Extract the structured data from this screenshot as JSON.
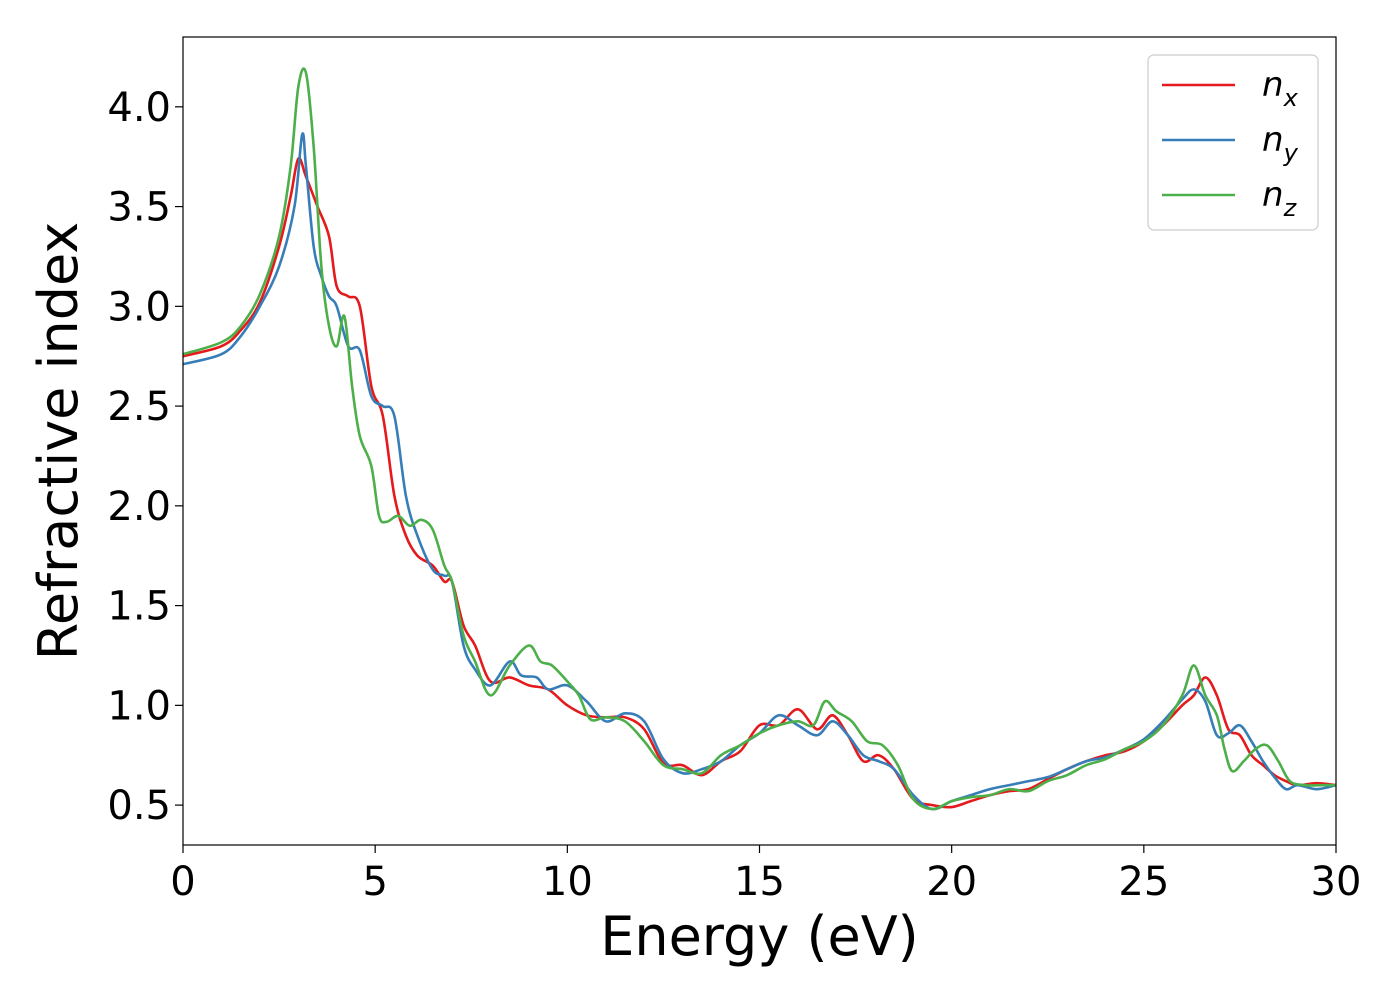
{
  "chart_data": {
    "type": "line",
    "xlabel": "Energy (eV)",
    "ylabel": "Refractive index",
    "xlim": [
      0,
      30
    ],
    "ylim": [
      0.3,
      4.35
    ],
    "xticks": [
      0,
      5,
      10,
      15,
      20,
      25,
      30
    ],
    "xtick_labels": [
      "0",
      "5",
      "10",
      "15",
      "20",
      "25",
      "30"
    ],
    "yticks": [
      0.5,
      1.0,
      1.5,
      2.0,
      2.5,
      3.0,
      3.5,
      4.0
    ],
    "ytick_labels": [
      "0.5",
      "1.0",
      "1.5",
      "2.0",
      "2.5",
      "3.0",
      "3.5",
      "4.0"
    ],
    "grid": false,
    "legend_position": "top-right",
    "series": [
      {
        "name": "n",
        "subscript": "x",
        "color": "#e41a1c",
        "x": [
          0,
          1,
          1.5,
          2,
          2.5,
          2.8,
          3.0,
          3.2,
          3.5,
          3.8,
          4.0,
          4.3,
          4.6,
          4.9,
          5.2,
          5.5,
          5.8,
          6.1,
          6.5,
          6.8,
          7.0,
          7.3,
          7.6,
          8.0,
          8.5,
          9.0,
          9.5,
          10.0,
          10.5,
          11.0,
          11.5,
          12.0,
          12.5,
          13.0,
          13.5,
          14.0,
          14.5,
          15.0,
          15.5,
          16.0,
          16.5,
          16.9,
          17.3,
          17.7,
          18.1,
          18.5,
          19.0,
          19.5,
          20.0,
          20.5,
          21.0,
          21.5,
          22.0,
          22.5,
          23.0,
          23.5,
          24.0,
          24.5,
          25.0,
          25.5,
          26.0,
          26.3,
          26.6,
          26.9,
          27.2,
          27.5,
          27.8,
          28.1,
          28.4,
          28.7,
          29.0,
          29.5,
          30.0
        ],
        "y": [
          2.75,
          2.8,
          2.88,
          3.02,
          3.3,
          3.55,
          3.74,
          3.65,
          3.5,
          3.35,
          3.1,
          3.05,
          3.0,
          2.6,
          2.45,
          2.05,
          1.85,
          1.75,
          1.7,
          1.62,
          1.62,
          1.4,
          1.3,
          1.12,
          1.14,
          1.1,
          1.08,
          1.0,
          0.95,
          0.94,
          0.94,
          0.88,
          0.71,
          0.7,
          0.65,
          0.72,
          0.77,
          0.9,
          0.9,
          0.98,
          0.88,
          0.95,
          0.85,
          0.72,
          0.75,
          0.68,
          0.53,
          0.5,
          0.49,
          0.52,
          0.55,
          0.57,
          0.58,
          0.63,
          0.68,
          0.72,
          0.75,
          0.77,
          0.82,
          0.9,
          1.0,
          1.05,
          1.14,
          1.05,
          0.88,
          0.85,
          0.75,
          0.7,
          0.65,
          0.62,
          0.6,
          0.61,
          0.6
        ]
      },
      {
        "name": "n",
        "subscript": "y",
        "color": "#377eb8",
        "x": [
          0,
          1,
          1.5,
          2,
          2.5,
          2.9,
          3.1,
          3.2,
          3.4,
          3.6,
          3.8,
          4.0,
          4.3,
          4.6,
          4.9,
          5.2,
          5.5,
          5.8,
          6.1,
          6.5,
          6.8,
          7.0,
          7.3,
          7.6,
          8.0,
          8.5,
          8.8,
          9.2,
          9.5,
          10.0,
          10.5,
          11.0,
          11.5,
          12.0,
          12.5,
          13.0,
          13.5,
          14.0,
          14.5,
          15.0,
          15.5,
          16.0,
          16.5,
          16.9,
          17.3,
          17.7,
          18.1,
          18.5,
          19.0,
          19.5,
          20.0,
          20.5,
          21.0,
          21.5,
          22.0,
          22.5,
          23.0,
          23.5,
          24.0,
          24.5,
          25.0,
          25.5,
          26.0,
          26.3,
          26.6,
          26.9,
          27.2,
          27.5,
          27.8,
          28.1,
          28.4,
          28.7,
          29.0,
          29.5,
          30.0
        ],
        "y": [
          2.71,
          2.76,
          2.85,
          3.0,
          3.2,
          3.5,
          3.86,
          3.7,
          3.3,
          3.15,
          3.05,
          3.0,
          2.8,
          2.78,
          2.55,
          2.5,
          2.45,
          2.05,
          1.85,
          1.68,
          1.65,
          1.62,
          1.3,
          1.18,
          1.1,
          1.22,
          1.15,
          1.14,
          1.08,
          1.1,
          1.02,
          0.92,
          0.96,
          0.92,
          0.73,
          0.66,
          0.68,
          0.72,
          0.8,
          0.86,
          0.95,
          0.9,
          0.85,
          0.92,
          0.85,
          0.75,
          0.72,
          0.68,
          0.55,
          0.48,
          0.52,
          0.55,
          0.58,
          0.6,
          0.62,
          0.64,
          0.68,
          0.72,
          0.74,
          0.78,
          0.83,
          0.92,
          1.03,
          1.08,
          1.02,
          0.85,
          0.86,
          0.9,
          0.82,
          0.72,
          0.64,
          0.58,
          0.6,
          0.58,
          0.6
        ]
      },
      {
        "name": "n",
        "subscript": "z",
        "color": "#4daf4a",
        "x": [
          0,
          1,
          1.5,
          2,
          2.5,
          2.8,
          3.0,
          3.2,
          3.4,
          3.6,
          3.8,
          4.0,
          4.2,
          4.4,
          4.6,
          4.9,
          5.1,
          5.3,
          5.6,
          5.9,
          6.2,
          6.5,
          6.8,
          7.0,
          7.3,
          7.6,
          8.0,
          8.5,
          9.0,
          9.3,
          9.6,
          10.0,
          10.3,
          10.6,
          11.0,
          11.5,
          12.0,
          12.5,
          13.0,
          13.5,
          14.0,
          14.5,
          15.0,
          15.5,
          16.0,
          16.4,
          16.7,
          17.0,
          17.4,
          17.8,
          18.2,
          18.6,
          19.0,
          19.5,
          20.0,
          20.5,
          21.0,
          21.5,
          22.0,
          22.5,
          23.0,
          23.5,
          24.0,
          24.5,
          25.0,
          25.5,
          26.0,
          26.3,
          26.6,
          26.9,
          27.1,
          27.3,
          27.6,
          27.9,
          28.2,
          28.5,
          28.8,
          29.2,
          29.6,
          30.0
        ],
        "y": [
          2.76,
          2.82,
          2.9,
          3.06,
          3.35,
          3.7,
          4.1,
          4.17,
          3.8,
          3.2,
          2.9,
          2.8,
          2.95,
          2.6,
          2.35,
          2.2,
          1.95,
          1.92,
          1.95,
          1.9,
          1.93,
          1.88,
          1.7,
          1.62,
          1.35,
          1.22,
          1.05,
          1.2,
          1.3,
          1.22,
          1.2,
          1.12,
          1.05,
          0.93,
          0.94,
          0.92,
          0.82,
          0.7,
          0.68,
          0.66,
          0.75,
          0.8,
          0.86,
          0.9,
          0.92,
          0.9,
          1.02,
          0.97,
          0.92,
          0.82,
          0.8,
          0.7,
          0.53,
          0.48,
          0.52,
          0.54,
          0.55,
          0.58,
          0.57,
          0.62,
          0.65,
          0.7,
          0.73,
          0.78,
          0.82,
          0.9,
          1.05,
          1.2,
          1.05,
          0.95,
          0.78,
          0.67,
          0.72,
          0.78,
          0.8,
          0.72,
          0.62,
          0.6,
          0.6,
          0.6
        ]
      }
    ]
  }
}
